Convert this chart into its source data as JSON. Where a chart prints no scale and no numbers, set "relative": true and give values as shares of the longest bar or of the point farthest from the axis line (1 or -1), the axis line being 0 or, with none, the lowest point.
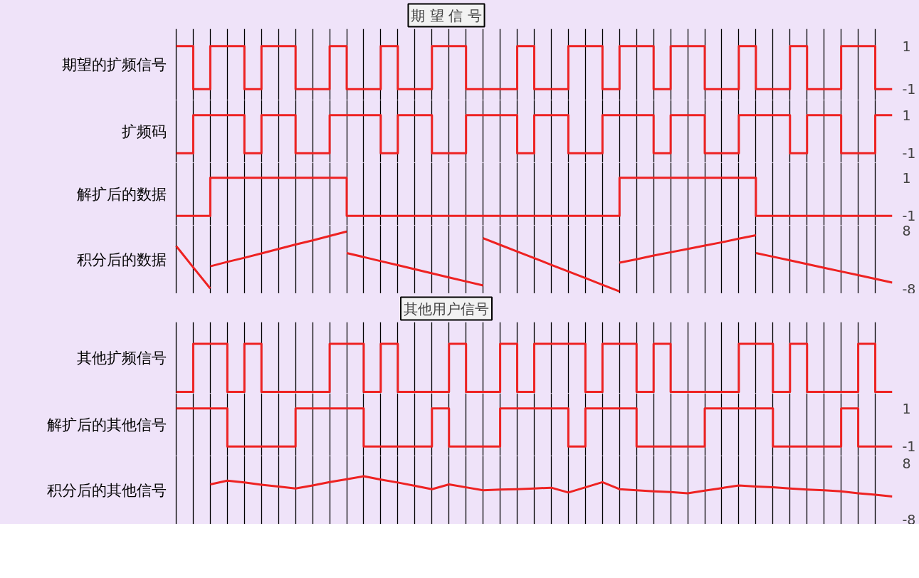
{
  "chart_data": [
    {
      "type": "step",
      "title": "期 望 信 号",
      "ylabel": "期望的扩频信号",
      "categories": [
        null,
        null,
        null,
        null,
        null,
        null,
        null,
        null,
        null,
        null,
        null,
        null,
        null,
        null,
        null,
        null,
        null,
        null,
        null,
        null,
        null,
        null,
        null,
        null,
        null,
        null,
        null,
        null,
        null,
        null,
        null,
        null,
        null,
        null,
        null,
        null,
        null,
        null,
        null,
        null,
        null,
        null,
        null
      ],
      "ylim": [
        -1.5,
        1.8
      ],
      "yticks": [
        1,
        -1
      ],
      "tick_labels": "y",
      "grid": "x",
      "series": [
        {
          "color": "#ee2222",
          "values": [
            1,
            -1,
            1,
            1,
            -1,
            1,
            1,
            -1,
            -1,
            1,
            -1,
            -1,
            1,
            -1,
            -1,
            1,
            1,
            -1,
            -1,
            -1,
            1,
            -1,
            -1,
            1,
            1,
            -1,
            1,
            1,
            -1,
            1,
            1,
            -1,
            -1,
            1,
            -1,
            -1,
            1,
            -1,
            -1,
            1,
            1,
            -1,
            -1
          ]
        }
      ]
    },
    {
      "type": "step",
      "ylabel": "扩频码",
      "categories": [
        null,
        null,
        null,
        null,
        null,
        null,
        null,
        null,
        null,
        null,
        null,
        null,
        null,
        null,
        null,
        null,
        null,
        null,
        null,
        null,
        null,
        null,
        null,
        null,
        null,
        null,
        null,
        null,
        null,
        null,
        null,
        null,
        null,
        null,
        null,
        null,
        null,
        null,
        null,
        null,
        null,
        null,
        null
      ],
      "ylim": [
        -1.5,
        1.8
      ],
      "yticks": [
        1,
        -1
      ],
      "tick_labels": "y",
      "grid": "x",
      "series": [
        {
          "color": "#ee2222",
          "values": [
            -1,
            1,
            1,
            1,
            -1,
            1,
            1,
            -1,
            -1,
            1,
            1,
            1,
            -1,
            1,
            1,
            -1,
            -1,
            1,
            1,
            1,
            -1,
            1,
            1,
            -1,
            -1,
            1,
            1,
            1,
            -1,
            1,
            1,
            -1,
            -1,
            1,
            1,
            1,
            -1,
            1,
            1,
            -1,
            -1,
            1,
            1
          ]
        }
      ]
    },
    {
      "type": "step",
      "ylabel": "解扩后的数据",
      "categories": [
        null,
        null,
        null,
        null,
        null,
        null,
        null,
        null,
        null,
        null,
        null,
        null,
        null,
        null,
        null,
        null,
        null,
        null,
        null,
        null,
        null,
        null,
        null,
        null,
        null,
        null,
        null,
        null,
        null,
        null,
        null,
        null,
        null,
        null,
        null,
        null,
        null,
        null,
        null,
        null,
        null,
        null,
        null
      ],
      "ylim": [
        -1.5,
        1.8
      ],
      "yticks": [
        1,
        -1
      ],
      "tick_labels": "y",
      "grid": "x",
      "series": [
        {
          "color": "#ee2222",
          "values": [
            -1,
            -1,
            1,
            1,
            1,
            1,
            1,
            1,
            1,
            1,
            -1,
            -1,
            -1,
            -1,
            -1,
            -1,
            -1,
            -1,
            -1,
            -1,
            -1,
            -1,
            -1,
            -1,
            -1,
            -1,
            1,
            1,
            1,
            1,
            1,
            1,
            1,
            1,
            -1,
            -1,
            -1,
            -1,
            -1,
            -1,
            -1,
            -1,
            -1
          ]
        }
      ]
    },
    {
      "type": "line",
      "ylabel": "积分后的数据",
      "categories": [
        null,
        null,
        null,
        null,
        null,
        null,
        null,
        null,
        null,
        null,
        null,
        null,
        null,
        null,
        null,
        null,
        null,
        null,
        null,
        null,
        null,
        null,
        null,
        null,
        null,
        null,
        null,
        null,
        null,
        null,
        null,
        null,
        null,
        null,
        null,
        null,
        null,
        null,
        null,
        null,
        null,
        null,
        null
      ],
      "ylim": [
        -9,
        9.5
      ],
      "yticks": [
        8,
        -8
      ],
      "tick_labels": "y",
      "grid": "x",
      "series": [
        {
          "color": "#ee2222",
          "values": [
            3.9,
            -1.9,
            -7.6,
            null,
            null,
            null,
            null,
            null,
            null,
            null,
            null,
            null,
            null,
            null,
            null,
            null,
            null,
            null,
            null,
            null,
            null,
            null,
            null,
            null,
            null,
            null,
            null,
            null,
            null,
            null,
            null,
            null,
            null,
            null,
            null,
            null,
            null,
            null,
            null,
            null,
            null,
            null,
            null
          ]
        },
        {
          "color": "#ee2222",
          "values": [
            null,
            null,
            -1.6,
            -0.4,
            0.7,
            1.9,
            3.1,
            4.3,
            5.4,
            6.6,
            7.8,
            null,
            null,
            null,
            null,
            null,
            null,
            null,
            null,
            null,
            null,
            null,
            null,
            null,
            null,
            null,
            null,
            null,
            null,
            null,
            null,
            null,
            null,
            null,
            null,
            null,
            null,
            null,
            null,
            null,
            null,
            null,
            null
          ]
        },
        {
          "color": "#ee2222",
          "values": [
            null,
            null,
            null,
            null,
            null,
            null,
            null,
            null,
            null,
            null,
            2.0,
            0.9,
            -0.2,
            -1.3,
            -2.4,
            -3.5,
            -4.6,
            -5.7,
            -6.8,
            null,
            null,
            null,
            null,
            null,
            null,
            null,
            null,
            null,
            null,
            null,
            null,
            null,
            null,
            null,
            null,
            null,
            null,
            null,
            null,
            null,
            null,
            null,
            null
          ]
        },
        {
          "color": "#ee2222",
          "values": [
            null,
            null,
            null,
            null,
            null,
            null,
            null,
            null,
            null,
            null,
            null,
            null,
            null,
            null,
            null,
            null,
            null,
            null,
            6.0,
            4.2,
            2.4,
            0.6,
            -1.2,
            -3.0,
            -4.8,
            -6.6,
            -8.4,
            null,
            null,
            null,
            null,
            null,
            null,
            null,
            null,
            null,
            null,
            null,
            null,
            null,
            null,
            null,
            null
          ]
        },
        {
          "color": "#ee2222",
          "values": [
            null,
            null,
            null,
            null,
            null,
            null,
            null,
            null,
            null,
            null,
            null,
            null,
            null,
            null,
            null,
            null,
            null,
            null,
            null,
            null,
            null,
            null,
            null,
            null,
            null,
            null,
            -0.6,
            0.3,
            1.3,
            2.2,
            3.1,
            4.0,
            4.9,
            5.9,
            6.8,
            null,
            null,
            null,
            null,
            null,
            null,
            null,
            null
          ]
        },
        {
          "color": "#ee2222",
          "values": [
            null,
            null,
            null,
            null,
            null,
            null,
            null,
            null,
            null,
            null,
            null,
            null,
            null,
            null,
            null,
            null,
            null,
            null,
            null,
            null,
            null,
            null,
            null,
            null,
            null,
            null,
            null,
            null,
            null,
            null,
            null,
            null,
            null,
            null,
            2.0,
            1.0,
            0.0,
            -1.0,
            -2.0,
            -3.0,
            -4.0,
            -5.0,
            -6.0
          ]
        }
      ]
    },
    {
      "type": "step",
      "title": "其他用户信号",
      "ylabel": "其他扩频信号",
      "relative": true,
      "categories": [
        null,
        null,
        null,
        null,
        null,
        null,
        null,
        null,
        null,
        null,
        null,
        null,
        null,
        null,
        null,
        null,
        null,
        null,
        null,
        null,
        null,
        null,
        null,
        null,
        null,
        null,
        null,
        null,
        null,
        null,
        null,
        null,
        null,
        null,
        null,
        null,
        null,
        null,
        null,
        null,
        null,
        null,
        null
      ],
      "tick_labels": false,
      "grid": "x",
      "series": [
        {
          "color": "#ee2222",
          "values": [
            0,
            1,
            1,
            0,
            1,
            0,
            0,
            0,
            0,
            1,
            1,
            0,
            1,
            0,
            0,
            0,
            1,
            0,
            0,
            1,
            0,
            1,
            1,
            1,
            0,
            1,
            1,
            0,
            1,
            0,
            0,
            0,
            0,
            1,
            1,
            0,
            1,
            0,
            0,
            0,
            1,
            0,
            0
          ]
        }
      ]
    },
    {
      "type": "step",
      "ylabel": "解扩后的其他信号",
      "categories": [
        null,
        null,
        null,
        null,
        null,
        null,
        null,
        null,
        null,
        null,
        null,
        null,
        null,
        null,
        null,
        null,
        null,
        null,
        null,
        null,
        null,
        null,
        null,
        null,
        null,
        null,
        null,
        null,
        null,
        null,
        null,
        null,
        null,
        null,
        null,
        null,
        null,
        null,
        null,
        null,
        null,
        null,
        null
      ],
      "ylim": [
        -1.5,
        1.8
      ],
      "yticks": [
        1,
        -1
      ],
      "tick_labels": "y",
      "grid": "x",
      "series": [
        {
          "color": "#ee2222",
          "values": [
            1,
            1,
            1,
            -1,
            -1,
            -1,
            -1,
            1,
            1,
            1,
            1,
            -1,
            -1,
            -1,
            -1,
            1,
            -1,
            -1,
            -1,
            1,
            1,
            1,
            1,
            -1,
            1,
            1,
            1,
            -1,
            -1,
            -1,
            -1,
            1,
            1,
            1,
            1,
            -1,
            -1,
            -1,
            -1,
            1,
            -1,
            -1,
            -1
          ]
        }
      ]
    },
    {
      "type": "line",
      "ylabel": "积分后的其他信号",
      "categories": [
        null,
        null,
        null,
        null,
        null,
        null,
        null,
        null,
        null,
        null,
        null,
        null,
        null,
        null,
        null,
        null,
        null,
        null,
        null,
        null,
        null,
        null,
        null,
        null,
        null,
        null,
        null,
        null,
        null,
        null,
        null,
        null,
        null,
        null,
        null,
        null,
        null,
        null,
        null,
        null,
        null,
        null,
        null
      ],
      "ylim": [
        -8.5,
        10
      ],
      "yticks": [
        8,
        -8
      ],
      "tick_labels": "y",
      "grid": "x",
      "series": [
        {
          "color": "#ee2222",
          "values": [
            null,
            null,
            2.3,
            3.3,
            2.8,
            2.2,
            1.7,
            1.2,
            2.0,
            2.9,
            3.7,
            4.5,
            3.6,
            2.8,
            1.9,
            1.0,
            2.3,
            1.5,
            0.7,
            0.9,
            1.0,
            1.2,
            1.4,
            0.1,
            1.5,
            2.9,
            1.0,
            0.7,
            0.4,
            0.2,
            -0.1,
            0.6,
            1.3,
            2.0,
            1.7,
            1.5,
            1.2,
            0.9,
            0.7,
            0.4,
            -0.1,
            -0.5,
            -1.0
          ]
        }
      ]
    }
  ]
}
